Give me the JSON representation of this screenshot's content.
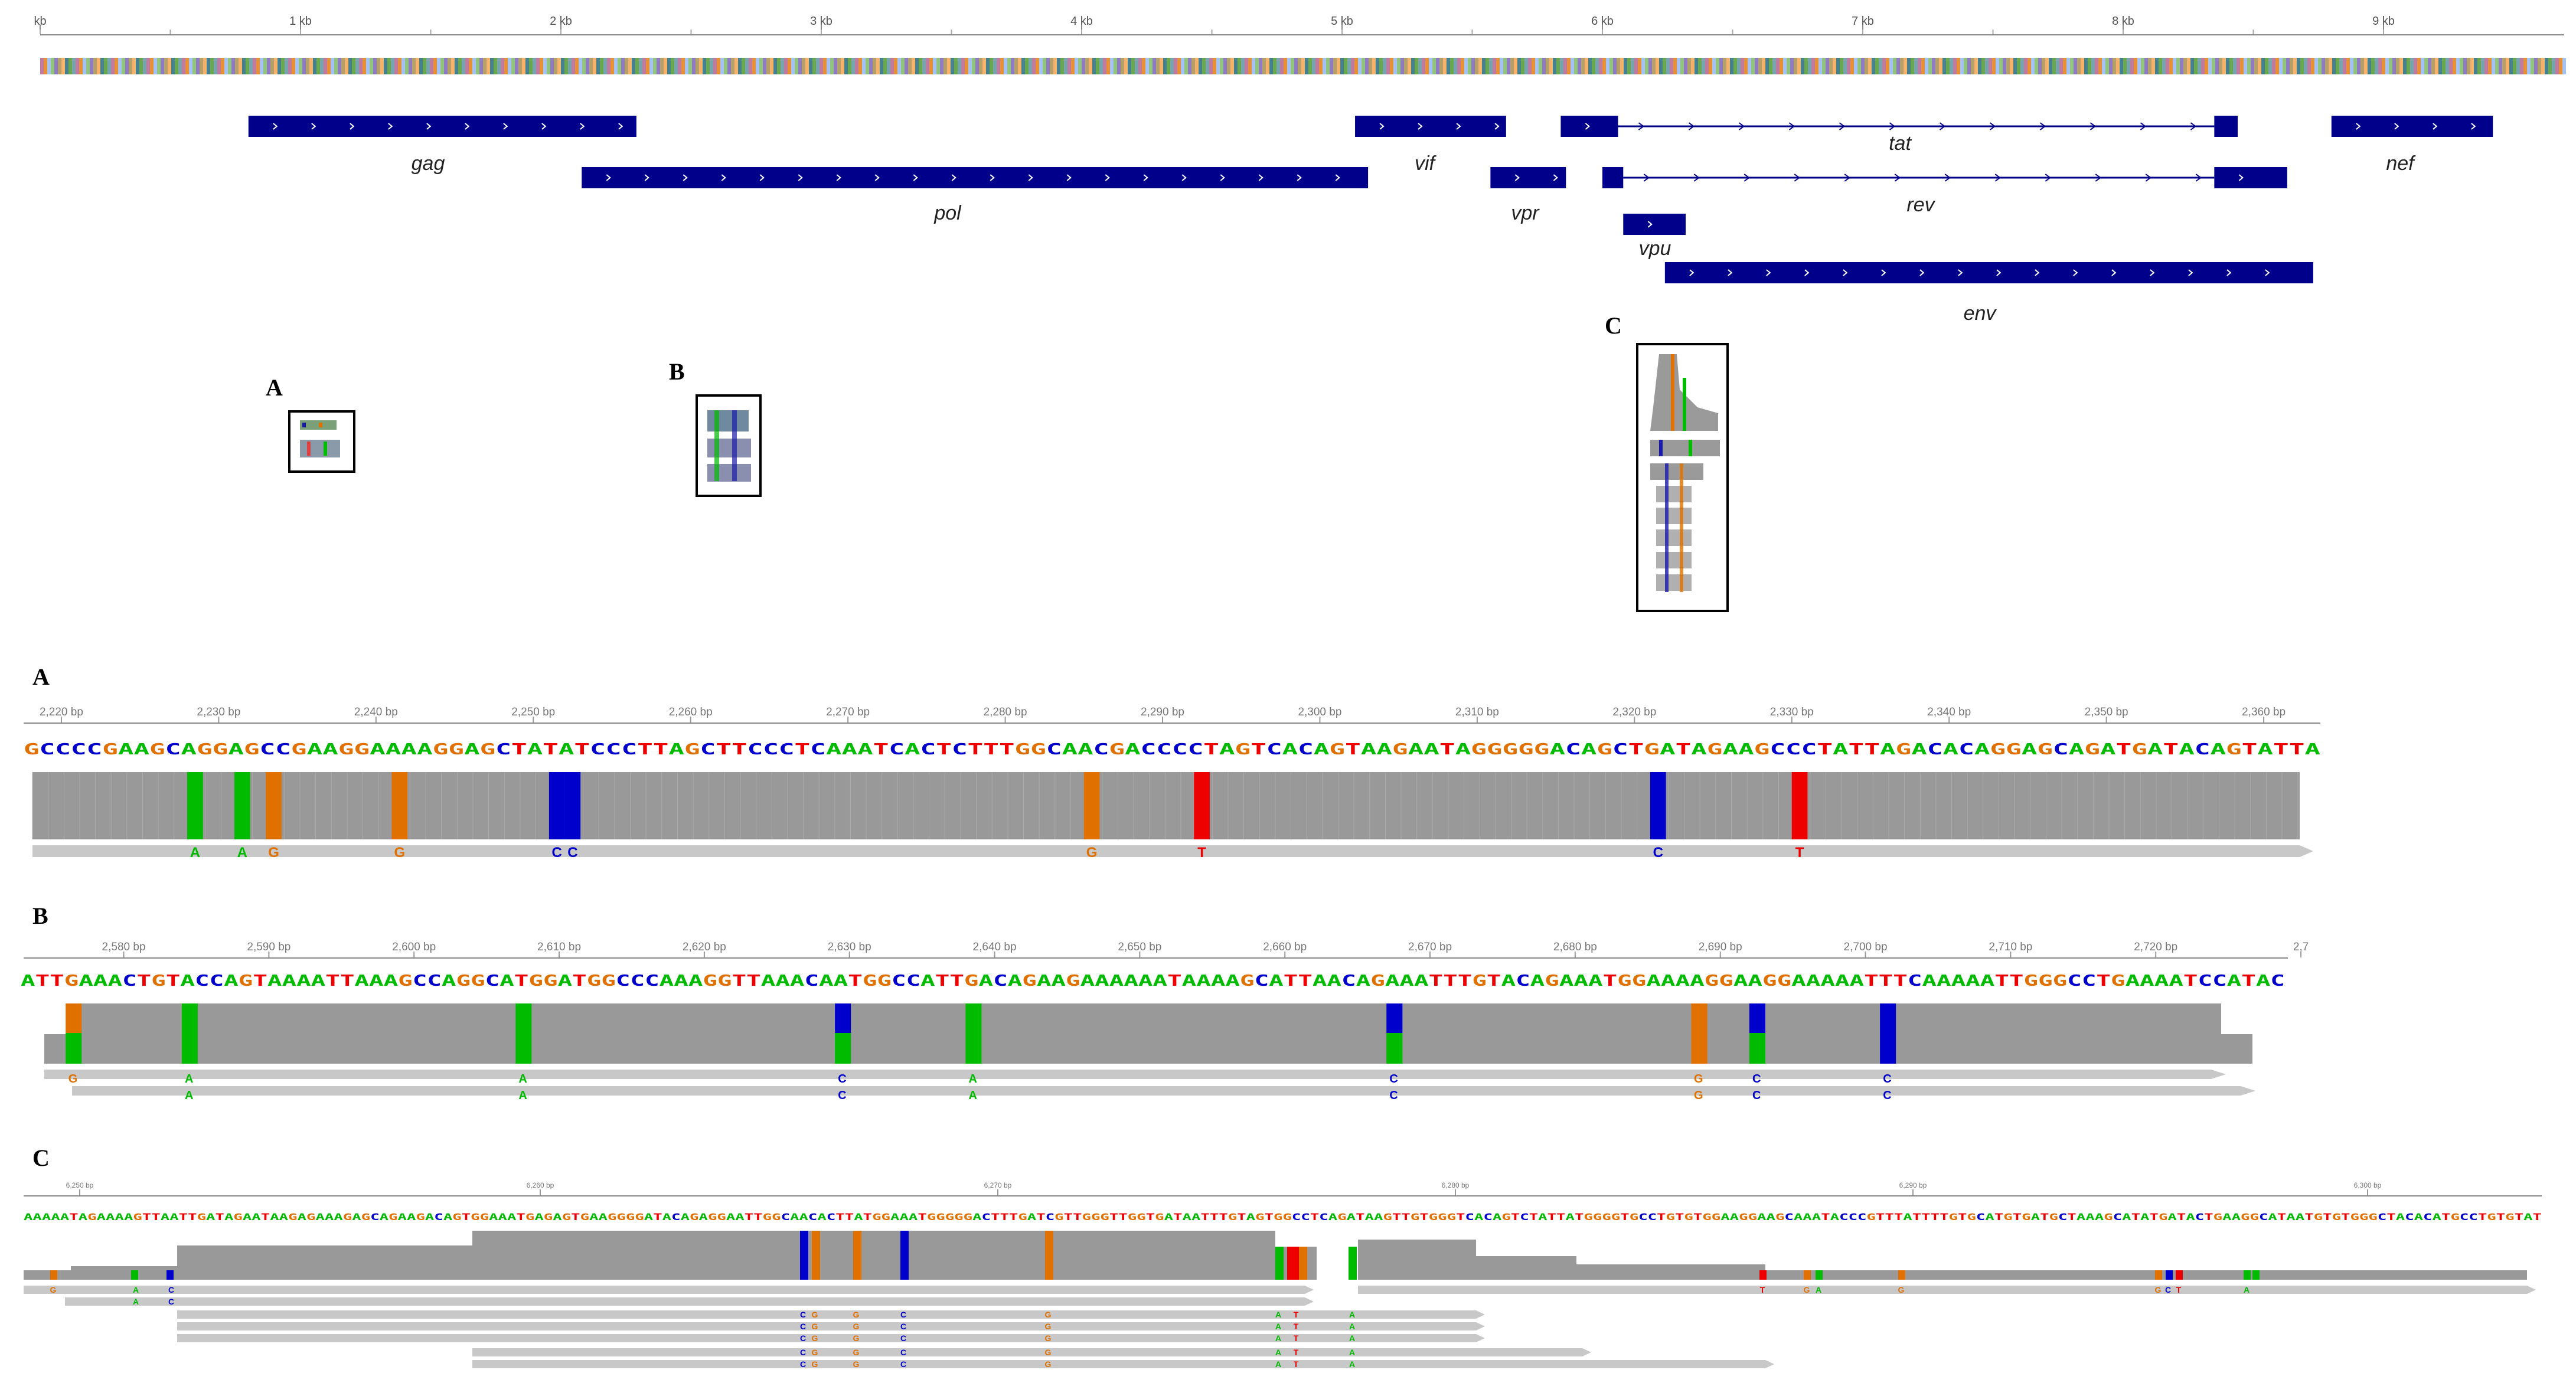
{
  "overview": {
    "ruler_labels": [
      "kb",
      "1 kb",
      "2 kb",
      "3 kb",
      "4 kb",
      "5 kb",
      "6 kb",
      "7 kb",
      "8 kb",
      "9 kb"
    ],
    "ruler_positions_kb": [
      0,
      1,
      2,
      3,
      4,
      5,
      6,
      7,
      8,
      9
    ],
    "genome_length_kb": 9.6,
    "genes": [
      {
        "name": "gag",
        "exons": [
          [
            0.8,
            2.29
          ]
        ]
      },
      {
        "name": "pol",
        "exons": [
          [
            2.08,
            5.1
          ]
        ]
      },
      {
        "name": "vif",
        "exons": [
          [
            5.05,
            5.63
          ]
        ]
      },
      {
        "name": "vpr",
        "exons": [
          [
            5.57,
            5.86
          ]
        ]
      },
      {
        "name": "tat",
        "exons": [
          [
            5.84,
            6.06
          ],
          [
            8.35,
            8.44
          ]
        ]
      },
      {
        "name": "rev",
        "exons": [
          [
            6.0,
            6.08
          ],
          [
            8.35,
            8.63
          ]
        ]
      },
      {
        "name": "vpu",
        "exons": [
          [
            6.08,
            6.32
          ]
        ]
      },
      {
        "name": "env",
        "exons": [
          [
            6.24,
            8.73
          ]
        ]
      },
      {
        "name": "nef",
        "exons": [
          [
            8.8,
            9.42
          ]
        ]
      }
    ],
    "panel_labels": [
      "A",
      "B",
      "C"
    ]
  },
  "colors": {
    "A": "#00bb00",
    "C": "#0000cc",
    "G": "#e07000",
    "T": "#ee0000",
    "gene": "#00008b",
    "read": "#999999",
    "read_light": "#c8c8c8"
  },
  "panel_a": {
    "label": "A",
    "ruler_labels": [
      "2,220 bp",
      "2,230 bp",
      "2,240 bp",
      "2,250 bp",
      "2,260 bp",
      "2,270 bp",
      "2,280 bp",
      "2,290 bp",
      "2,300 bp",
      "2,310 bp",
      "2,320 bp",
      "2,330 bp",
      "2,340 bp",
      "2,350 bp",
      "2,360 bp"
    ],
    "sequence": "GCCCCGAAGCAGGAGCCGAAGGAAAAGGAGCTATATCCCTTAGCTTCCCTCAAATCACTCTTTGGCAACGACCCCTAGTCACAGTAAGAATAGGGGGACAGCTGATAGAAGCCCTATTAGACACAGGAGCAGATGATACAGTATTA",
    "mismatches": [
      {
        "pos": 2228,
        "base": "A"
      },
      {
        "pos": 2231,
        "base": "A"
      },
      {
        "pos": 2233,
        "base": "G"
      },
      {
        "pos": 2241,
        "base": "G"
      },
      {
        "pos": 2251,
        "base": "C"
      },
      {
        "pos": 2252,
        "base": "C"
      },
      {
        "pos": 2285,
        "base": "G"
      },
      {
        "pos": 2292,
        "base": "T"
      },
      {
        "pos": 2321,
        "base": "C"
      },
      {
        "pos": 2330,
        "base": "T"
      }
    ]
  },
  "panel_b": {
    "label": "B",
    "ruler_labels": [
      "2,580 bp",
      "2,590 bp",
      "2,600 bp",
      "2,610 bp",
      "2,620 bp",
      "2,630 bp",
      "2,640 bp",
      "2,650 bp",
      "2,660 bp",
      "2,670 bp",
      "2,680 bp",
      "2,690 bp",
      "2,700 bp",
      "2,710 bp",
      "2,720 bp",
      "2,7"
    ],
    "sequence": "ATTGAAACTGTACCAGTAAAATTAAAGCCAGGCATGGATGGCCCAAAGGTTAAACAATGGCCATTGACAGAAGAAAAAATAAAAGCATTAACAGAAATTTGTACAGAAATGGAAAAGGAAGGAAAAATTTCAAAAATTGGGCCTGAAAATCCATAC",
    "read1_bases": [
      "G",
      "A",
      "A",
      "C",
      "A",
      "C",
      "G",
      "C",
      "C"
    ],
    "read2_bases": [
      "A",
      "A",
      "C",
      "A",
      "C",
      "G",
      "C",
      "C"
    ]
  },
  "panel_c": {
    "label": "C",
    "ruler_labels": [
      "6,250 bp",
      "6,260 bp",
      "6,270 bp",
      "6,280 bp",
      "6,290 bp",
      "6,300 bp"
    ],
    "sequence": "AAAAATAGAAAAGTTAATTGATAGAATAAGAGAAAGAGCAGAAGACAGTGGAAATGAGAGTGAAGGGGATACAGAGGAATTGGCAACACTTATGGAAATGGGGGACTTTGATCGTTGGGTTGGTGATAATTTGTAGTGGCCTCAGATAAGTTGTGGGTCACAGTCTATTATGGGGTGCCTGTGTGGAAGGAAGCAAATACCCGTTTATTTTGTGCATGTGATGCTAAAGCATATGATACTGAAGGCATAATGTGTGGGCTACACATGCCTGTGTAT"
  }
}
